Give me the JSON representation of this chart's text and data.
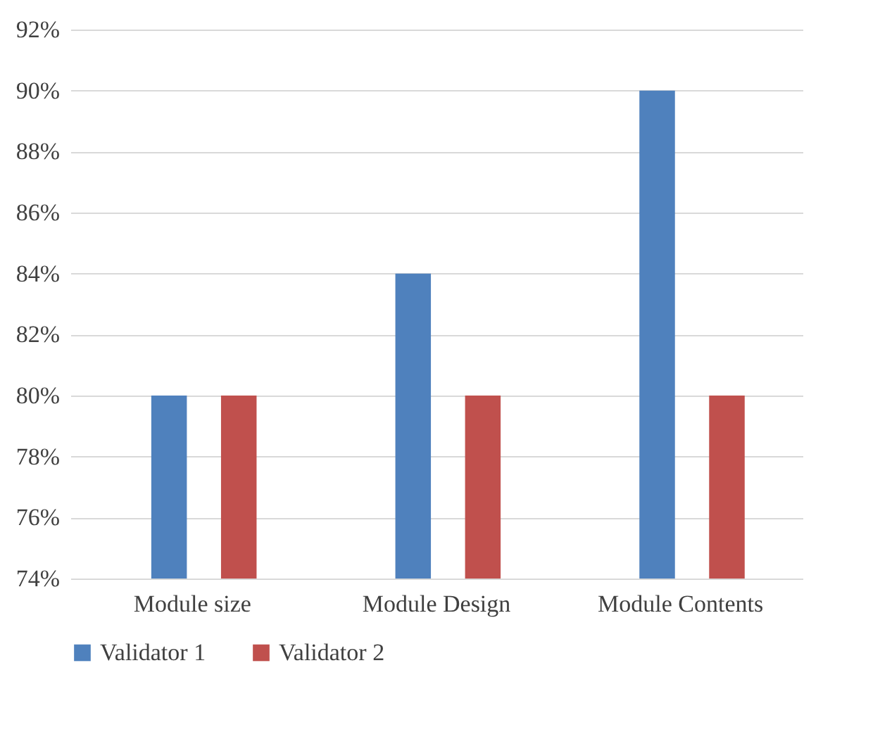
{
  "chart_data": {
    "type": "bar",
    "categories": [
      "Module size",
      "Module Design",
      "Module Contents"
    ],
    "series": [
      {
        "name": "Validator 1",
        "color": "#4f81bd",
        "values": [
          80,
          84,
          90
        ]
      },
      {
        "name": "Validator 2",
        "color": "#c0504d",
        "values": [
          80,
          80,
          80
        ]
      }
    ],
    "ylim": [
      74,
      92
    ],
    "yticks": [
      {
        "value": 74,
        "label": "74%"
      },
      {
        "value": 76,
        "label": "76%"
      },
      {
        "value": 78,
        "label": "78%"
      },
      {
        "value": 80,
        "label": "80%"
      },
      {
        "value": 82,
        "label": "82%"
      },
      {
        "value": 84,
        "label": "84%"
      },
      {
        "value": 86,
        "label": "86%"
      },
      {
        "value": 88,
        "label": "88%"
      },
      {
        "value": 90,
        "label": "90%"
      },
      {
        "value": 92,
        "label": "92%"
      }
    ],
    "grid": "y",
    "legend": "bottom"
  }
}
